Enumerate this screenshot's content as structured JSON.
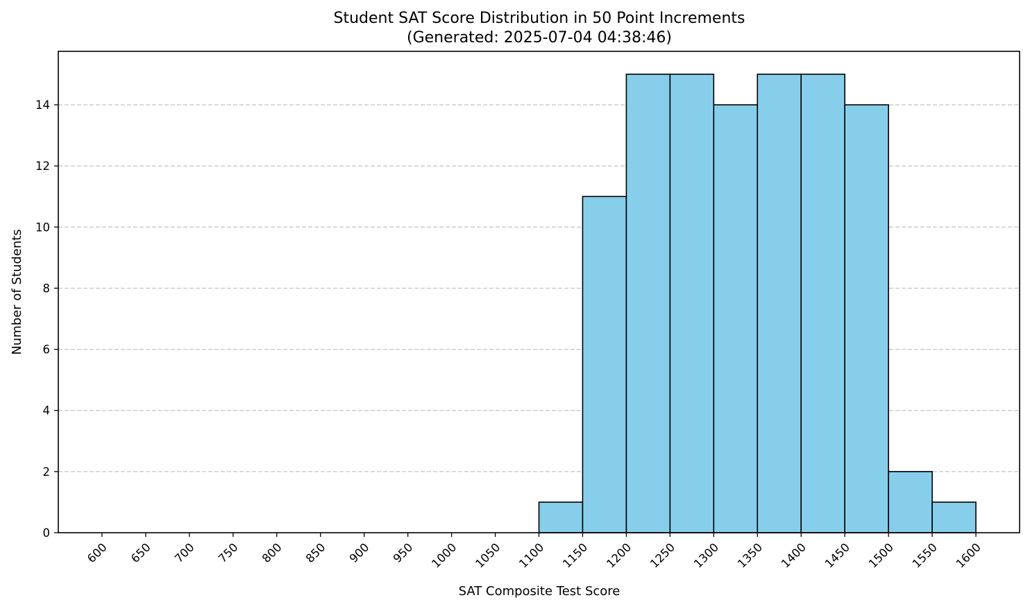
{
  "chart_data": {
    "type": "bar",
    "title": "Student SAT Score Distribution in 50 Point Increments",
    "subtitle": "(Generated: 2025-07-04 04:38:46)",
    "xlabel": "SAT Composite Test Score",
    "ylabel": "Number of Students",
    "x_ticks": [
      600,
      650,
      700,
      750,
      800,
      850,
      900,
      950,
      1000,
      1050,
      1100,
      1150,
      1200,
      1250,
      1300,
      1350,
      1400,
      1450,
      1500,
      1550,
      1600
    ],
    "y_ticks": [
      0,
      2,
      4,
      6,
      8,
      10,
      12,
      14
    ],
    "xlim": [
      550,
      1650
    ],
    "ylim": [
      0,
      15.75
    ],
    "bins": [
      {
        "start": 1100,
        "end": 1150,
        "count": 1
      },
      {
        "start": 1150,
        "end": 1200,
        "count": 11
      },
      {
        "start": 1200,
        "end": 1250,
        "count": 15
      },
      {
        "start": 1250,
        "end": 1300,
        "count": 15
      },
      {
        "start": 1300,
        "end": 1350,
        "count": 14
      },
      {
        "start": 1350,
        "end": 1400,
        "count": 15
      },
      {
        "start": 1400,
        "end": 1450,
        "count": 15
      },
      {
        "start": 1450,
        "end": 1500,
        "count": 14
      },
      {
        "start": 1500,
        "end": 1550,
        "count": 2
      },
      {
        "start": 1550,
        "end": 1600,
        "count": 1
      }
    ],
    "grid": "y-dashed",
    "bar_color": "#87ceeb",
    "edge_color": "#000000"
  }
}
